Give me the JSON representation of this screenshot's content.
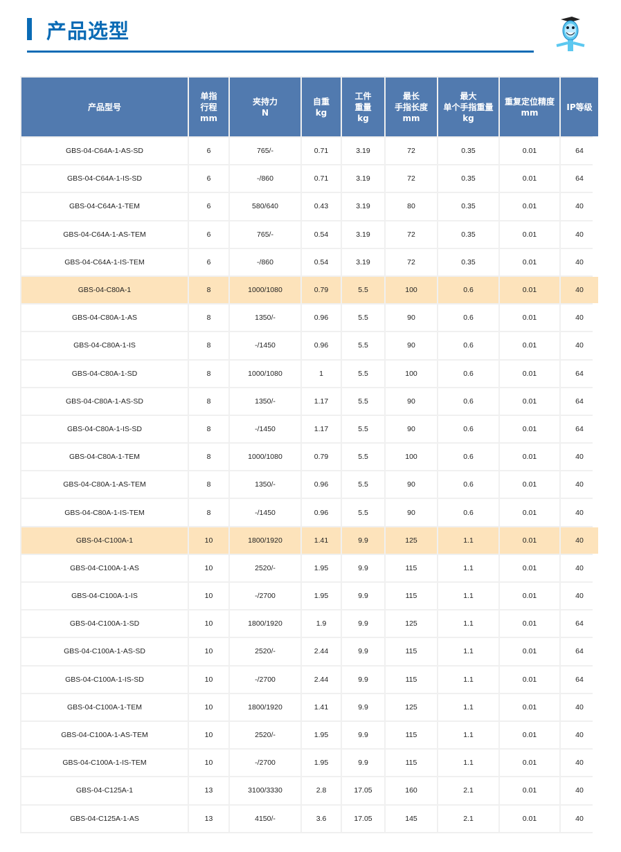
{
  "title": "产品选型",
  "colors": {
    "accent": "#0a6bb5",
    "header_bg": "#517aaf",
    "highlight": "#fde3bb"
  },
  "headers": [
    "产品型号",
    "单指\n行程\nmm",
    "夹持力\nN",
    "自重\nkg",
    "工件\n重量\nkg",
    "最长\n手指长度\nmm",
    "最大\n单个手指重量\nkg",
    "重复定位精度\nmm",
    "IP等级"
  ],
  "rows": [
    {
      "hl": false,
      "cells": [
        "GBS-04-C64A-1-AS-SD",
        "6",
        "765/-",
        "0.71",
        "3.19",
        "72",
        "0.35",
        "0.01",
        "64"
      ]
    },
    {
      "hl": false,
      "cells": [
        "GBS-04-C64A-1-IS-SD",
        "6",
        "-/860",
        "0.71",
        "3.19",
        "72",
        "0.35",
        "0.01",
        "64"
      ]
    },
    {
      "hl": false,
      "cells": [
        "GBS-04-C64A-1-TEM",
        "6",
        "580/640",
        "0.43",
        "3.19",
        "80",
        "0.35",
        "0.01",
        "40"
      ]
    },
    {
      "hl": false,
      "cells": [
        "GBS-04-C64A-1-AS-TEM",
        "6",
        "765/-",
        "0.54",
        "3.19",
        "72",
        "0.35",
        "0.01",
        "40"
      ]
    },
    {
      "hl": false,
      "cells": [
        "GBS-04-C64A-1-IS-TEM",
        "6",
        "-/860",
        "0.54",
        "3.19",
        "72",
        "0.35",
        "0.01",
        "40"
      ]
    },
    {
      "hl": true,
      "cells": [
        "GBS-04-C80A-1",
        "8",
        "1000/1080",
        "0.79",
        "5.5",
        "100",
        "0.6",
        "0.01",
        "40"
      ]
    },
    {
      "hl": false,
      "cells": [
        "GBS-04-C80A-1-AS",
        "8",
        "1350/-",
        "0.96",
        "5.5",
        "90",
        "0.6",
        "0.01",
        "40"
      ]
    },
    {
      "hl": false,
      "cells": [
        "GBS-04-C80A-1-IS",
        "8",
        "-/1450",
        "0.96",
        "5.5",
        "90",
        "0.6",
        "0.01",
        "40"
      ]
    },
    {
      "hl": false,
      "cells": [
        "GBS-04-C80A-1-SD",
        "8",
        "1000/1080",
        "1",
        "5.5",
        "100",
        "0.6",
        "0.01",
        "64"
      ]
    },
    {
      "hl": false,
      "cells": [
        "GBS-04-C80A-1-AS-SD",
        "8",
        "1350/-",
        "1.17",
        "5.5",
        "90",
        "0.6",
        "0.01",
        "64"
      ]
    },
    {
      "hl": false,
      "cells": [
        "GBS-04-C80A-1-IS-SD",
        "8",
        "-/1450",
        "1.17",
        "5.5",
        "90",
        "0.6",
        "0.01",
        "64"
      ]
    },
    {
      "hl": false,
      "cells": [
        "GBS-04-C80A-1-TEM",
        "8",
        "1000/1080",
        "0.79",
        "5.5",
        "100",
        "0.6",
        "0.01",
        "40"
      ]
    },
    {
      "hl": false,
      "cells": [
        "GBS-04-C80A-1-AS-TEM",
        "8",
        "1350/-",
        "0.96",
        "5.5",
        "90",
        "0.6",
        "0.01",
        "40"
      ]
    },
    {
      "hl": false,
      "cells": [
        "GBS-04-C80A-1-IS-TEM",
        "8",
        "-/1450",
        "0.96",
        "5.5",
        "90",
        "0.6",
        "0.01",
        "40"
      ]
    },
    {
      "hl": true,
      "cells": [
        "GBS-04-C100A-1",
        "10",
        "1800/1920",
        "1.41",
        "9.9",
        "125",
        "1.1",
        "0.01",
        "40"
      ]
    },
    {
      "hl": false,
      "cells": [
        "GBS-04-C100A-1-AS",
        "10",
        "2520/-",
        "1.95",
        "9.9",
        "115",
        "1.1",
        "0.01",
        "40"
      ]
    },
    {
      "hl": false,
      "cells": [
        "GBS-04-C100A-1-IS",
        "10",
        "-/2700",
        "1.95",
        "9.9",
        "115",
        "1.1",
        "0.01",
        "40"
      ]
    },
    {
      "hl": false,
      "cells": [
        "GBS-04-C100A-1-SD",
        "10",
        "1800/1920",
        "1.9",
        "9.9",
        "125",
        "1.1",
        "0.01",
        "64"
      ]
    },
    {
      "hl": false,
      "cells": [
        "GBS-04-C100A-1-AS-SD",
        "10",
        "2520/-",
        "2.44",
        "9.9",
        "115",
        "1.1",
        "0.01",
        "64"
      ]
    },
    {
      "hl": false,
      "cells": [
        "GBS-04-C100A-1-IS-SD",
        "10",
        "-/2700",
        "2.44",
        "9.9",
        "115",
        "1.1",
        "0.01",
        "64"
      ]
    },
    {
      "hl": false,
      "cells": [
        "GBS-04-C100A-1-TEM",
        "10",
        "1800/1920",
        "1.41",
        "9.9",
        "125",
        "1.1",
        "0.01",
        "40"
      ]
    },
    {
      "hl": false,
      "cells": [
        "GBS-04-C100A-1-AS-TEM",
        "10",
        "2520/-",
        "1.95",
        "9.9",
        "115",
        "1.1",
        "0.01",
        "40"
      ]
    },
    {
      "hl": false,
      "cells": [
        "GBS-04-C100A-1-IS-TEM",
        "10",
        "-/2700",
        "1.95",
        "9.9",
        "115",
        "1.1",
        "0.01",
        "40"
      ]
    },
    {
      "hl": false,
      "cells": [
        "GBS-04-C125A-1",
        "13",
        "3100/3330",
        "2.8",
        "17.05",
        "160",
        "2.1",
        "0.01",
        "40"
      ]
    },
    {
      "hl": false,
      "cells": [
        "GBS-04-C125A-1-AS",
        "13",
        "4150/-",
        "3.6",
        "17.05",
        "145",
        "2.1",
        "0.01",
        "40"
      ]
    }
  ]
}
